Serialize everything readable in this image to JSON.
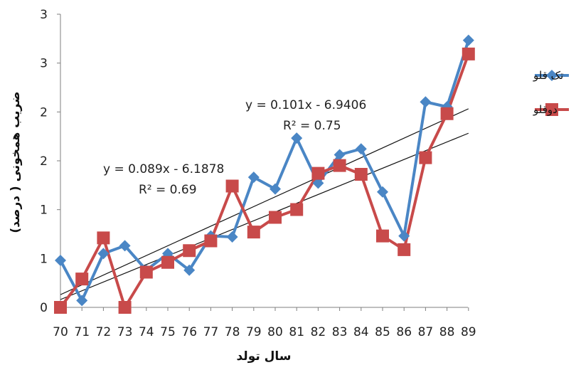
{
  "chart_data": {
    "type": "line",
    "categories": [
      "70",
      "71",
      "72",
      "73",
      "74",
      "75",
      "76",
      "77",
      "78",
      "79",
      "80",
      "81",
      "82",
      "83",
      "84",
      "85",
      "86",
      "87",
      "88",
      "89"
    ],
    "x_label": "سال تولد",
    "y_label": "ضریب همخونی ( درصد)",
    "y_tick_labels": [
      "0",
      "1",
      "1",
      "2",
      "2",
      "3",
      "3"
    ],
    "ylim": [
      0,
      3
    ],
    "grid": false,
    "legend_position": "right",
    "series": [
      {
        "name": "تک قلو",
        "color": "#4a86c5",
        "marker": "diamond",
        "values": [
          0.48,
          0.07,
          0.55,
          0.63,
          0.38,
          0.55,
          0.38,
          0.73,
          0.72,
          1.33,
          1.21,
          1.73,
          1.27,
          1.56,
          1.62,
          1.18,
          0.73,
          2.1,
          2.05,
          2.73
        ]
      },
      {
        "name": "دوقلو",
        "color": "#c84a4a",
        "marker": "square",
        "values": [
          0.0,
          0.29,
          0.71,
          0.0,
          0.36,
          0.46,
          0.58,
          0.68,
          1.24,
          0.77,
          0.92,
          1.0,
          1.37,
          1.45,
          1.36,
          0.73,
          0.59,
          1.53,
          1.98,
          2.59
        ]
      }
    ],
    "trendlines": [
      {
        "equation": "y = 0.089x - 6.1878",
        "r2_label": "R² = 0.69",
        "from": [
          70,
          0.08
        ],
        "to": [
          89,
          1.78
        ]
      },
      {
        "equation": "y = 0.101x - 6.9406",
        "r2_label": "R² = 0.75",
        "from": [
          70,
          0.13
        ],
        "to": [
          89,
          2.03
        ]
      }
    ]
  }
}
